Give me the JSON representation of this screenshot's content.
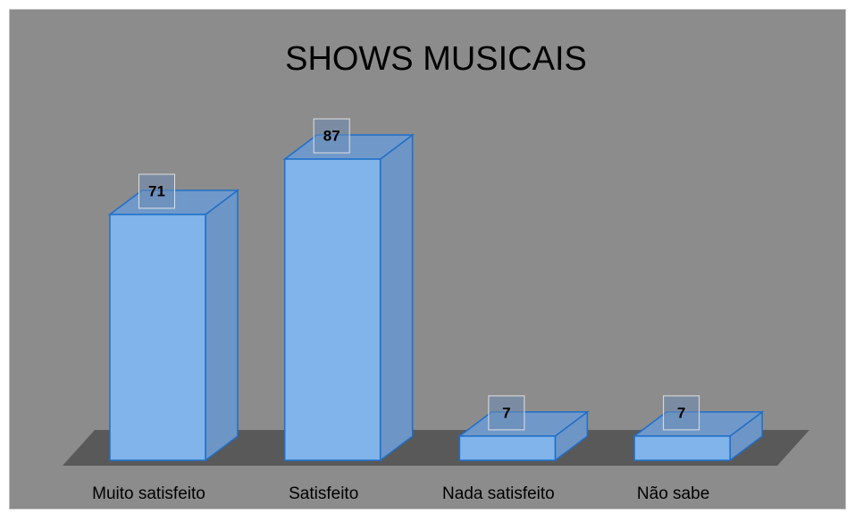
{
  "chart_data": {
    "type": "bar3d",
    "title": "SHOWS MUSICAIS",
    "categories": [
      "Muito satisfeito",
      "Satisfeito",
      "Nada satisfeito",
      "Não sabe"
    ],
    "values": [
      71,
      87,
      7,
      7
    ],
    "color": "#80b4ea"
  }
}
